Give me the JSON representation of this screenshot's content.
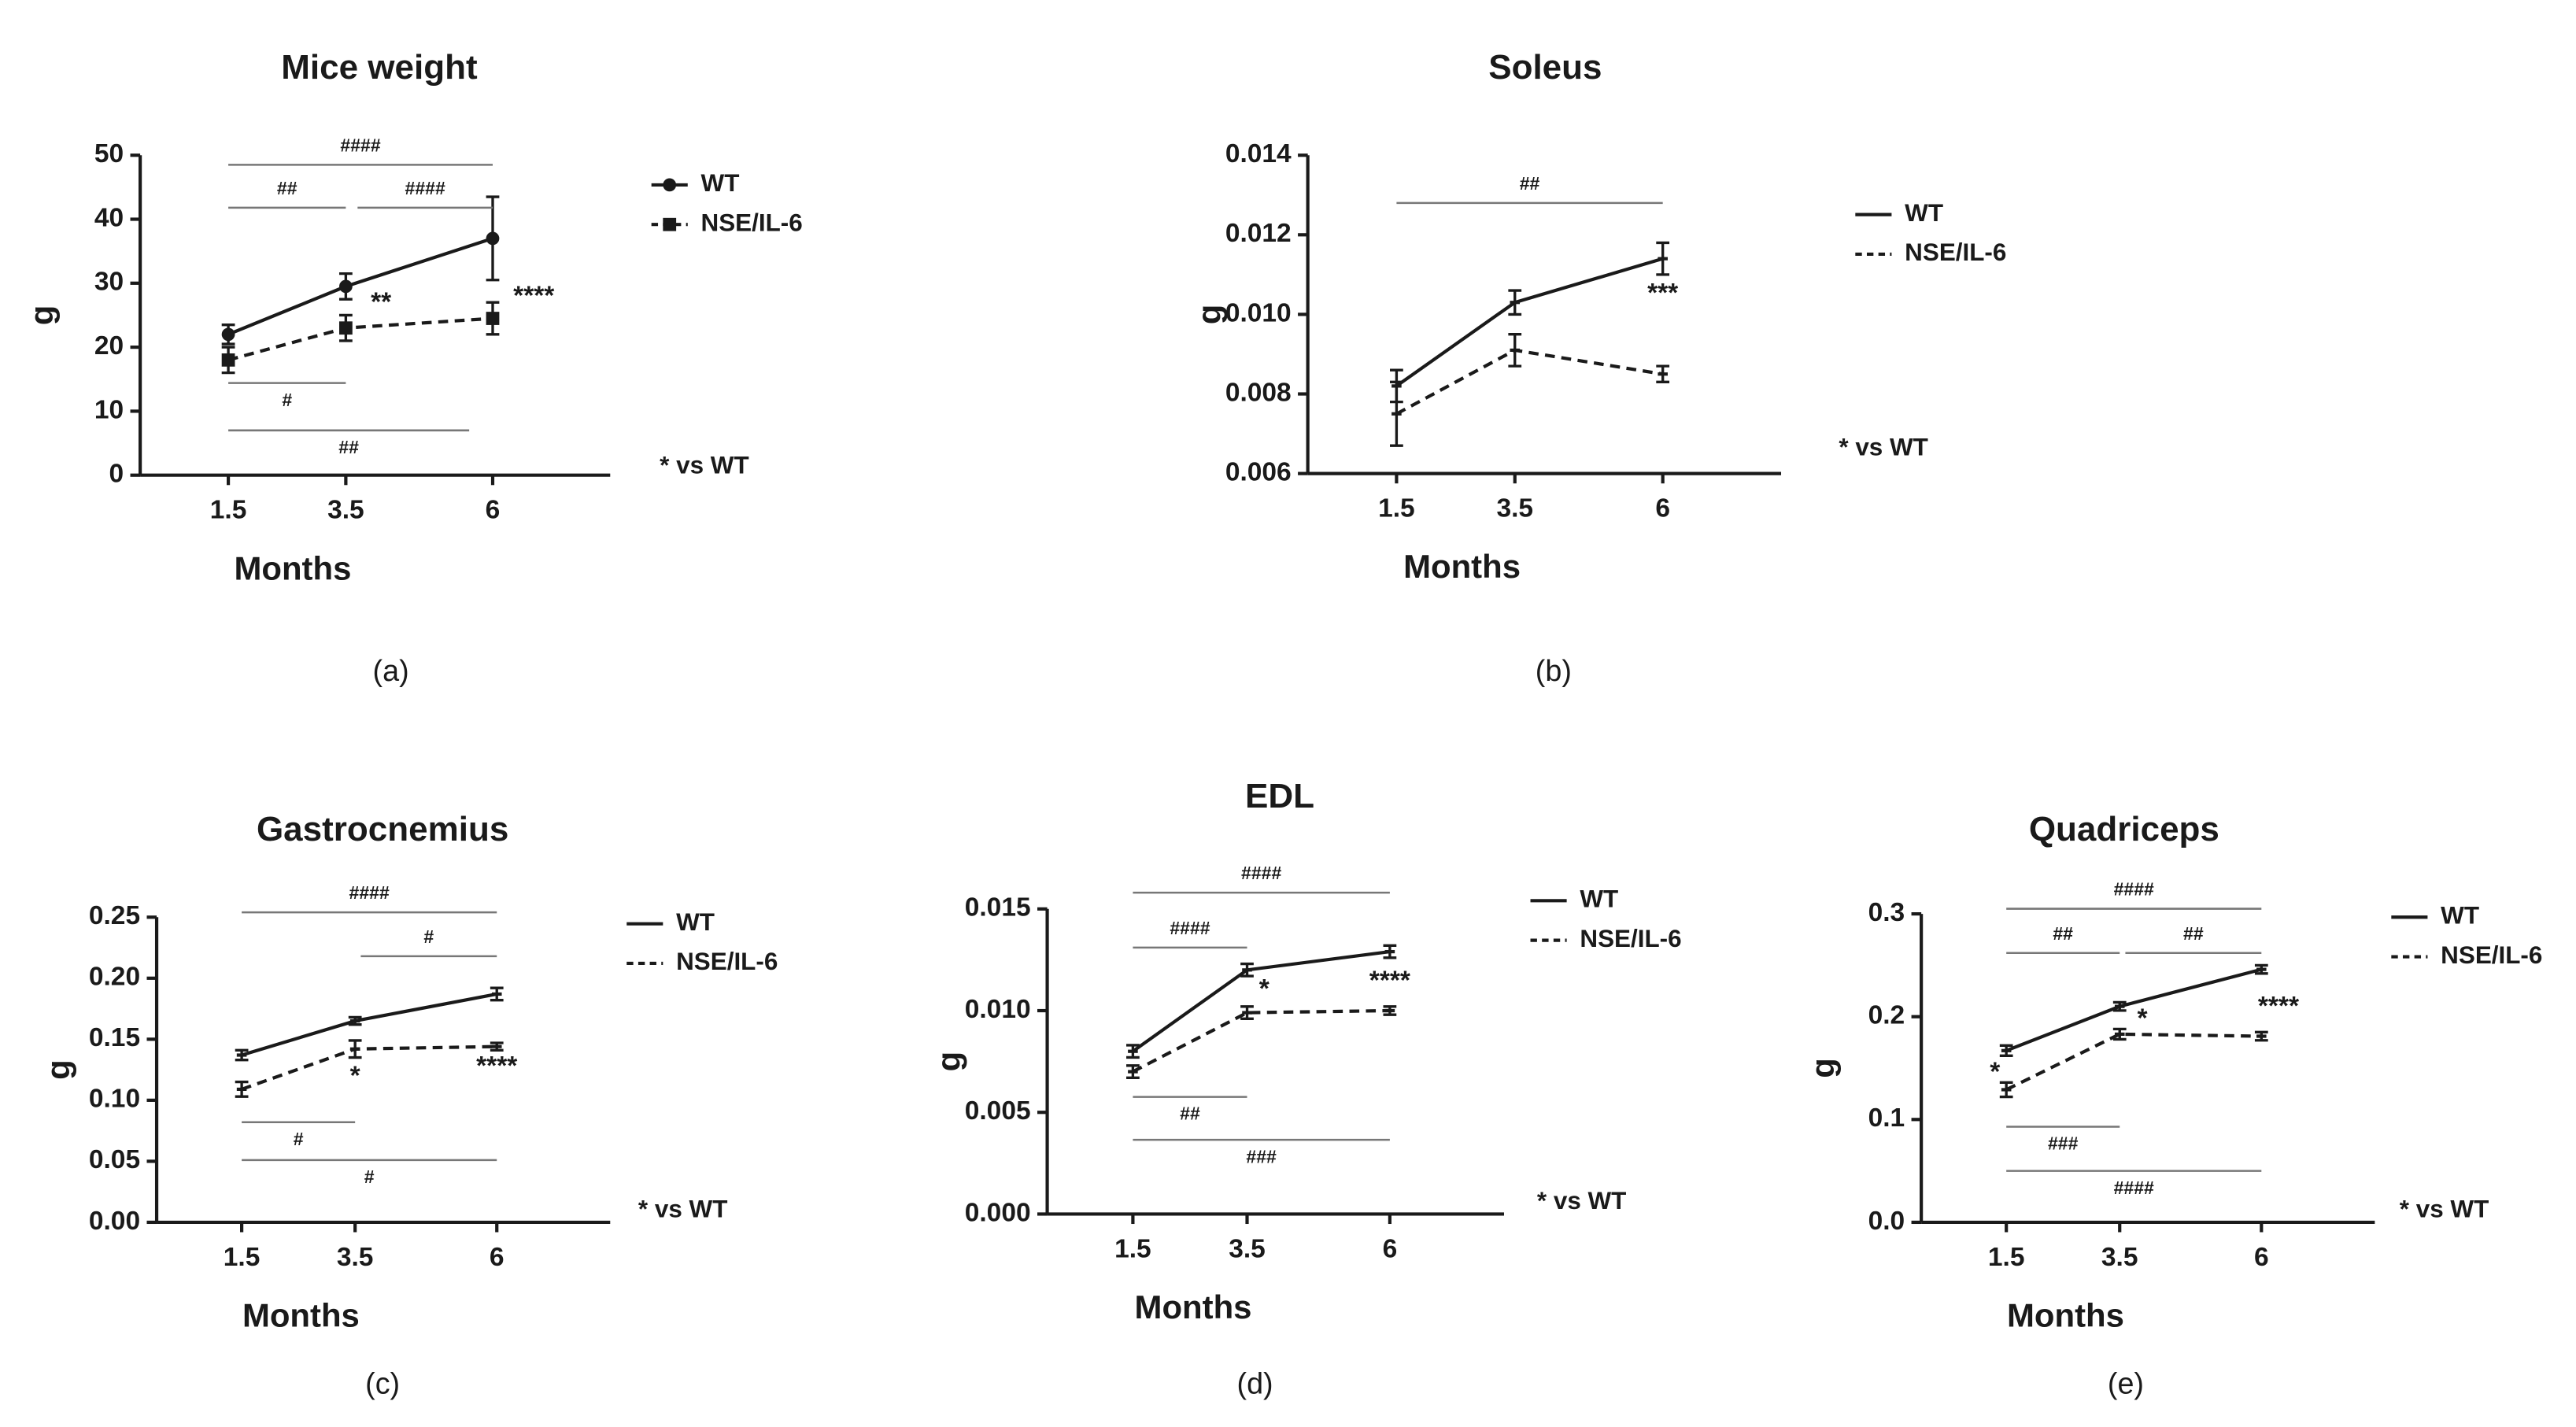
{
  "chart_data": [
    {
      "type": "line",
      "title": "Mice weight",
      "x_label": "Months",
      "y_label": "g",
      "panel_label": "(a)",
      "note": "* vs WT",
      "x": [
        1.5,
        3.5,
        6
      ],
      "xlim": [
        0,
        8
      ],
      "xticks": [
        1.5,
        3.5,
        6
      ],
      "ylim": [
        0,
        50
      ],
      "yticks": [
        0,
        10,
        20,
        30,
        40,
        50
      ],
      "series": [
        {
          "name": "WT",
          "color": "#1a1a1a",
          "line_style": "solid",
          "marker": "circle",
          "values": [
            22,
            29.5,
            37
          ],
          "errors": [
            1.5,
            2,
            6.5
          ]
        },
        {
          "name": "NSE/IL-6",
          "color": "#1a1a1a",
          "line_style": "dashed",
          "marker": "square",
          "values": [
            18,
            23,
            24.5
          ],
          "errors": [
            2,
            2,
            2.5
          ]
        }
      ],
      "brackets": [
        {
          "label": "####",
          "x": [
            1.5,
            6
          ],
          "y": 48.5,
          "label_position": "above"
        },
        {
          "label": "##",
          "x": [
            1.5,
            3.5
          ],
          "y": 41.8,
          "label_position": "above"
        },
        {
          "label": "####",
          "x": [
            3.7,
            6
          ],
          "y": 41.8,
          "label_position": "above"
        },
        {
          "label": "#",
          "x": [
            1.5,
            3.5
          ],
          "y": 14.4,
          "label_position": "below"
        },
        {
          "label": "##",
          "x": [
            1.5,
            5.6
          ],
          "y": 7,
          "label_position": "below"
        }
      ],
      "stars": [
        {
          "label": "**",
          "x": 4.1,
          "y": 26.8
        },
        {
          "label": "****",
          "x": 6.7,
          "y": 27.8
        }
      ]
    },
    {
      "type": "line",
      "title": "Soleus",
      "x_label": "Months",
      "y_label": "g",
      "panel_label": "(b)",
      "note": "* vs WT",
      "x": [
        1.5,
        3.5,
        6
      ],
      "xlim": [
        0,
        8
      ],
      "xticks": [
        1.5,
        3.5,
        6
      ],
      "ylim": [
        0.006,
        0.014
      ],
      "yticks": [
        0.006,
        0.008,
        {
          "value": 0.01,
          "label": "0.010"
        },
        0.012,
        0.014
      ],
      "series": [
        {
          "name": "WT",
          "color": "#1a1a1a",
          "line_style": "solid",
          "marker": "none",
          "values": [
            0.0082,
            0.0103,
            0.0114
          ],
          "errors": [
            0.0004,
            0.0003,
            0.0004
          ]
        },
        {
          "name": "NSE/IL-6",
          "color": "#1a1a1a",
          "line_style": "dashed",
          "marker": "none",
          "values": [
            0.0075,
            0.0091,
            0.0085
          ],
          "errors": [
            0.0008,
            0.0004,
            0.0002
          ]
        }
      ],
      "brackets": [
        {
          "label": "##",
          "x": [
            1.5,
            6
          ],
          "y": 0.0128,
          "label_position": "above"
        }
      ],
      "stars": [
        {
          "label": "***",
          "x": 6,
          "y": 0.0105
        }
      ]
    },
    {
      "type": "line",
      "title": "Gastrocnemius",
      "x_label": "Months",
      "y_label": "g",
      "panel_label": "(c)",
      "note": "* vs WT",
      "x": [
        1.5,
        3.5,
        6
      ],
      "xlim": [
        0,
        8
      ],
      "xticks": [
        1.5,
        3.5,
        6
      ],
      "ylim": [
        0,
        0.25
      ],
      "yticks": [
        {
          "value": 0,
          "label": "0.00"
        },
        0.05,
        {
          "value": 0.1,
          "label": "0.10"
        },
        0.15,
        {
          "value": 0.2,
          "label": "0.20"
        },
        0.25
      ],
      "series": [
        {
          "name": "WT",
          "color": "#1a1a1a",
          "line_style": "solid",
          "marker": "none",
          "values": [
            0.137,
            0.165,
            0.187
          ],
          "errors": [
            0.004,
            0.003,
            0.005
          ]
        },
        {
          "name": "NSE/IL-6",
          "color": "#1a1a1a",
          "line_style": "dashed",
          "marker": "none",
          "values": [
            0.109,
            0.142,
            0.144
          ],
          "errors": [
            0.006,
            0.007,
            0.003
          ]
        }
      ],
      "brackets": [
        {
          "label": "####",
          "x": [
            1.5,
            6
          ],
          "y": 0.254,
          "label_position": "above"
        },
        {
          "label": "#",
          "x": [
            3.6,
            6
          ],
          "y": 0.218,
          "label_position": "above"
        },
        {
          "label": "#",
          "x": [
            1.5,
            3.5
          ],
          "y": 0.082,
          "label_position": "below"
        },
        {
          "label": "#",
          "x": [
            1.5,
            6
          ],
          "y": 0.051,
          "label_position": "below"
        }
      ],
      "stars": [
        {
          "label": "*",
          "x": 3.5,
          "y": 0.119
        },
        {
          "label": "****",
          "x": 6,
          "y": 0.127
        }
      ]
    },
    {
      "type": "line",
      "title": "EDL",
      "x_label": "Months",
      "y_label": "g",
      "panel_label": "(d)",
      "note": "* vs WT",
      "x": [
        1.5,
        3.5,
        6
      ],
      "xlim": [
        0,
        8
      ],
      "xticks": [
        1.5,
        3.5,
        6
      ],
      "ylim": [
        0,
        0.015
      ],
      "yticks": [
        {
          "value": 0,
          "label": "0.000"
        },
        0.005,
        {
          "value": 0.01,
          "label": "0.010"
        },
        0.015
      ],
      "series": [
        {
          "name": "WT",
          "color": "#1a1a1a",
          "line_style": "solid",
          "marker": "none",
          "values": [
            0.008,
            0.012,
            0.0129
          ],
          "errors": [
            0.0003,
            0.0003,
            0.0003
          ]
        },
        {
          "name": "NSE/IL-6",
          "color": "#1a1a1a",
          "line_style": "dashed",
          "marker": "none",
          "values": [
            0.007,
            0.0099,
            0.01
          ],
          "errors": [
            0.0003,
            0.0003,
            0.0002
          ]
        }
      ],
      "brackets": [
        {
          "label": "####",
          "x": [
            1.5,
            6
          ],
          "y": 0.0158,
          "label_position": "above"
        },
        {
          "label": "####",
          "x": [
            1.5,
            3.5
          ],
          "y": 0.0131,
          "label_position": "above"
        },
        {
          "label": "##",
          "x": [
            1.5,
            3.5
          ],
          "y": 0.00576,
          "label_position": "below"
        },
        {
          "label": "###",
          "x": [
            1.5,
            6
          ],
          "y": 0.00365,
          "label_position": "below"
        }
      ],
      "stars": [
        {
          "label": "*",
          "x": 3.8,
          "y": 0.011
        },
        {
          "label": "****",
          "x": 6,
          "y": 0.0114
        }
      ]
    },
    {
      "type": "line",
      "title": "Quadriceps",
      "x_label": "Months",
      "y_label": "g",
      "panel_label": "(e)",
      "note": "* vs WT",
      "x": [
        1.5,
        3.5,
        6
      ],
      "xlim": [
        0,
        8
      ],
      "xticks": [
        1.5,
        3.5,
        6
      ],
      "ylim": [
        0,
        0.3
      ],
      "yticks": [
        {
          "value": 0,
          "label": "0.0"
        },
        0.1,
        0.2,
        0.3
      ],
      "series": [
        {
          "name": "WT",
          "color": "#1a1a1a",
          "line_style": "solid",
          "marker": "none",
          "values": [
            0.167,
            0.21,
            0.246
          ],
          "errors": [
            0.005,
            0.004,
            0.004
          ]
        },
        {
          "name": "NSE/IL-6",
          "color": "#1a1a1a",
          "line_style": "dashed",
          "marker": "none",
          "values": [
            0.129,
            0.183,
            0.181
          ],
          "errors": [
            0.007,
            0.005,
            0.004
          ]
        }
      ],
      "brackets": [
        {
          "label": "####",
          "x": [
            1.5,
            6
          ],
          "y": 0.305,
          "label_position": "above"
        },
        {
          "label": "##",
          "x": [
            1.5,
            3.5
          ],
          "y": 0.262,
          "label_position": "above"
        },
        {
          "label": "##",
          "x": [
            3.6,
            6
          ],
          "y": 0.262,
          "label_position": "above"
        },
        {
          "label": "###",
          "x": [
            1.5,
            3.5
          ],
          "y": 0.093,
          "label_position": "below"
        },
        {
          "label": "####",
          "x": [
            1.5,
            6
          ],
          "y": 0.05,
          "label_position": "below"
        }
      ],
      "stars": [
        {
          "label": "*",
          "x": 1.3,
          "y": 0.145
        },
        {
          "label": "*",
          "x": 3.9,
          "y": 0.197
        },
        {
          "label": "****",
          "x": 6.3,
          "y": 0.209
        }
      ]
    }
  ]
}
